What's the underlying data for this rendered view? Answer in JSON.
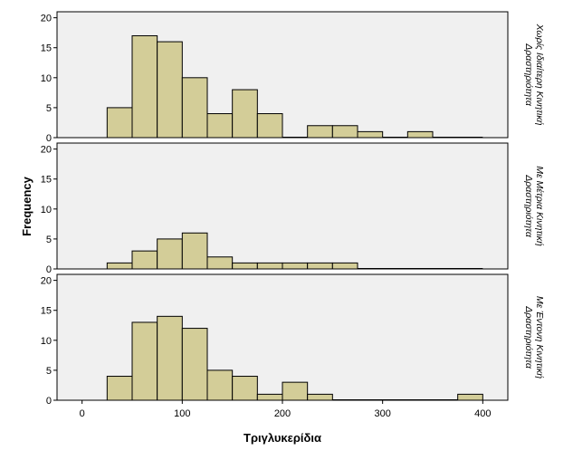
{
  "chart_data": {
    "type": "bar",
    "xlabel": "Τριγλυκερίδια",
    "ylabel": "Frequency",
    "xlim": [
      -25,
      425
    ],
    "ylim": [
      0,
      21
    ],
    "xticks": [
      "0",
      "100",
      "200",
      "300",
      "400"
    ],
    "yticks": [
      "0",
      "5",
      "10",
      "15",
      "20"
    ],
    "bin_edges": [
      25,
      50,
      75,
      100,
      125,
      150,
      175,
      200,
      225,
      250,
      275,
      300,
      325,
      350,
      375,
      400
    ],
    "colors": {
      "bar": "#d3cd98",
      "panel_bg": "#f0f0f0",
      "outline": "#000000"
    },
    "grid": false,
    "panels": [
      {
        "label_lines": [
          "Χωρίς Ιδιαίτερη Κινητική",
          "Δραστηριότητα"
        ],
        "counts": [
          5,
          17,
          16,
          10,
          4,
          8,
          4,
          0,
          2,
          2,
          1,
          0,
          1,
          0,
          0
        ]
      },
      {
        "label_lines": [
          "Με Μέτρια Κινητική",
          "Δραστηριότητα"
        ],
        "counts": [
          1,
          3,
          5,
          6,
          2,
          1,
          1,
          1,
          1,
          1,
          0,
          0,
          0,
          0,
          0
        ]
      },
      {
        "label_lines": [
          "Με Έντονη Κινητική",
          "Δραστηριότητα"
        ],
        "counts": [
          4,
          13,
          14,
          12,
          5,
          4,
          1,
          3,
          1,
          0,
          0,
          0,
          0,
          0,
          1
        ]
      }
    ]
  }
}
